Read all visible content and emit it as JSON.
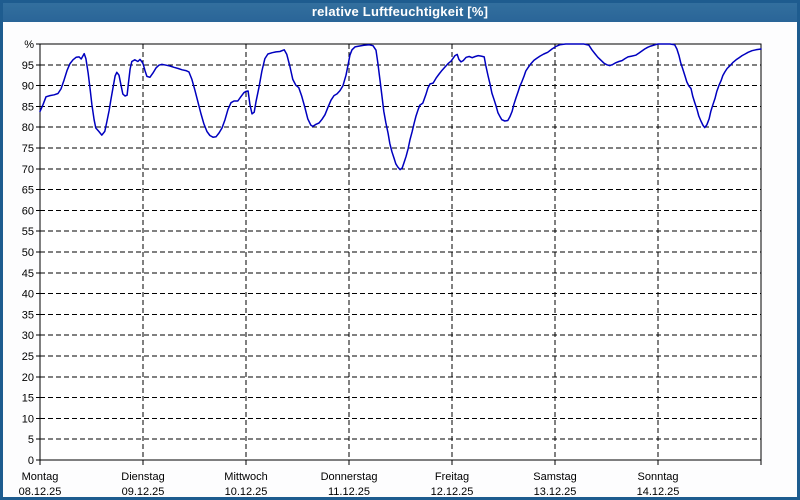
{
  "title_bar": {
    "text": "relative Luftfeuchtigkeit [%]"
  },
  "colors": {
    "title_bar_bg": "#2d6da3",
    "frame_border": "#1e5c8f",
    "plot_bg": "#ffffff",
    "grid": "#000000",
    "axis": "#000000",
    "line": "#0000bf",
    "label_text": "#000000",
    "title_text": "#ffffff"
  },
  "chart_data": {
    "type": "line",
    "title": "relative Luftfeuchtigkeit [%]",
    "ylabel": "%",
    "y_top_label": "%",
    "ylim": [
      0,
      100
    ],
    "ytick_step": 5,
    "grid": "dashed",
    "legend": "none",
    "x_range_hours": [
      0,
      168
    ],
    "x_days": [
      {
        "label": "Montag",
        "date": "08.12.25"
      },
      {
        "label": "Dienstag",
        "date": "09.12.25"
      },
      {
        "label": "Mittwoch",
        "date": "10.12.25"
      },
      {
        "label": "Donnerstag",
        "date": "11.12.25"
      },
      {
        "label": "Freitag",
        "date": "12.12.25"
      },
      {
        "label": "Samstag",
        "date": "13.12.25"
      },
      {
        "label": "Sonntag",
        "date": "14.12.25"
      }
    ],
    "series": [
      {
        "name": "relative Luftfeuchtigkeit",
        "unit": "%",
        "points": [
          [
            0,
            83.8
          ],
          [
            0.7,
            85.4
          ],
          [
            1.4,
            87.3
          ],
          [
            2.3,
            87.6
          ],
          [
            3.3,
            87.8
          ],
          [
            4.2,
            88.1
          ],
          [
            4.9,
            89.2
          ],
          [
            5.6,
            91.3
          ],
          [
            6.3,
            93.6
          ],
          [
            7,
            95.3
          ],
          [
            7.7,
            96.2
          ],
          [
            8.4,
            96.8
          ],
          [
            9.1,
            96.9
          ],
          [
            9.6,
            96.4
          ],
          [
            10.3,
            97.7
          ],
          [
            10.7,
            96.5
          ],
          [
            11.2,
            93.1
          ],
          [
            11.7,
            89
          ],
          [
            12.1,
            85.4
          ],
          [
            12.6,
            81.8
          ],
          [
            13,
            79.8
          ],
          [
            13.7,
            79
          ],
          [
            14.4,
            78.1
          ],
          [
            15.1,
            79
          ],
          [
            15.6,
            81.5
          ],
          [
            16.1,
            84
          ],
          [
            16.5,
            86.5
          ],
          [
            17,
            89.5
          ],
          [
            17.5,
            92.3
          ],
          [
            17.9,
            93.2
          ],
          [
            18.4,
            92.5
          ],
          [
            18.9,
            90
          ],
          [
            19.3,
            88
          ],
          [
            19.8,
            87.5
          ],
          [
            20.3,
            87.7
          ],
          [
            20.6,
            90.5
          ],
          [
            21,
            94
          ],
          [
            21.4,
            95.8
          ],
          [
            22.1,
            96.2
          ],
          [
            22.8,
            95.8
          ],
          [
            23.3,
            96.3
          ],
          [
            23.7,
            95.8
          ],
          [
            24,
            95.3
          ],
          [
            24.5,
            93.5
          ],
          [
            24.9,
            92.2
          ],
          [
            25.6,
            92
          ],
          [
            26.3,
            93
          ],
          [
            27,
            94.2
          ],
          [
            27.7,
            94.9
          ],
          [
            28.4,
            95.1
          ],
          [
            29.4,
            94.9
          ],
          [
            30.3,
            94.7
          ],
          [
            31.2,
            94.4
          ],
          [
            32.2,
            94.1
          ],
          [
            33.1,
            93.8
          ],
          [
            34,
            93.6
          ],
          [
            34.7,
            93.3
          ],
          [
            35.4,
            91.5
          ],
          [
            36.1,
            88.9
          ],
          [
            36.8,
            86.1
          ],
          [
            37.5,
            83.3
          ],
          [
            38.2,
            80.8
          ],
          [
            38.9,
            79
          ],
          [
            39.6,
            78
          ],
          [
            40.3,
            77.6
          ],
          [
            41,
            77.7
          ],
          [
            41.7,
            78.6
          ],
          [
            42.4,
            79.8
          ],
          [
            43.1,
            81.8
          ],
          [
            43.8,
            84.3
          ],
          [
            44.5,
            85.9
          ],
          [
            45.2,
            86.3
          ],
          [
            46.1,
            86.3
          ],
          [
            46.8,
            87.3
          ],
          [
            47.5,
            88.3
          ],
          [
            48,
            88.6
          ],
          [
            48.5,
            88.7
          ],
          [
            48.9,
            85.5
          ],
          [
            49.4,
            83.2
          ],
          [
            49.9,
            83.6
          ],
          [
            50.3,
            86
          ],
          [
            51,
            89.5
          ],
          [
            51.7,
            93.5
          ],
          [
            52.4,
            96.5
          ],
          [
            53.1,
            97.6
          ],
          [
            54.1,
            97.9
          ],
          [
            55,
            98.1
          ],
          [
            55.9,
            98.2
          ],
          [
            56.9,
            98.6
          ],
          [
            57.5,
            97.5
          ],
          [
            58.2,
            94.7
          ],
          [
            58.9,
            91.5
          ],
          [
            59.6,
            90.1
          ],
          [
            60.3,
            89.5
          ],
          [
            61,
            87.4
          ],
          [
            61.7,
            84.8
          ],
          [
            62.4,
            82
          ],
          [
            63.1,
            80.5
          ],
          [
            63.6,
            80.2
          ],
          [
            64.3,
            80.7
          ],
          [
            65,
            81
          ],
          [
            65.7,
            81.9
          ],
          [
            66.4,
            83
          ],
          [
            67.1,
            84.8
          ],
          [
            67.8,
            86.5
          ],
          [
            68.5,
            87.6
          ],
          [
            69.2,
            88
          ],
          [
            69.9,
            88.8
          ],
          [
            70.6,
            90
          ],
          [
            71.3,
            92.5
          ],
          [
            71.8,
            95
          ],
          [
            72.2,
            97.3
          ],
          [
            72.7,
            98.6
          ],
          [
            73.4,
            99.3
          ],
          [
            74.3,
            99.5
          ],
          [
            75.5,
            99.7
          ],
          [
            76.7,
            99.8
          ],
          [
            77.6,
            99.6
          ],
          [
            78.3,
            98.5
          ],
          [
            78.7,
            95.5
          ],
          [
            79.2,
            91.5
          ],
          [
            79.7,
            87.4
          ],
          [
            80.1,
            83.8
          ],
          [
            80.6,
            81
          ],
          [
            81.1,
            78.5
          ],
          [
            81.5,
            76.1
          ],
          [
            82,
            74.1
          ],
          [
            82.5,
            72.5
          ],
          [
            82.9,
            71.2
          ],
          [
            83.4,
            70.4
          ],
          [
            83.9,
            69.8
          ],
          [
            84.4,
            70.2
          ],
          [
            84.8,
            71.4
          ],
          [
            85.3,
            73
          ],
          [
            85.8,
            74.9
          ],
          [
            86.2,
            76.9
          ],
          [
            86.7,
            78.9
          ],
          [
            87.2,
            81
          ],
          [
            87.6,
            82.6
          ],
          [
            88.1,
            84.2
          ],
          [
            88.5,
            85.3
          ],
          [
            89.2,
            85.8
          ],
          [
            89.9,
            87.8
          ],
          [
            90.4,
            89.5
          ],
          [
            90.9,
            90.4
          ],
          [
            91.6,
            90.6
          ],
          [
            92.3,
            91.8
          ],
          [
            93,
            92.8
          ],
          [
            93.7,
            93.7
          ],
          [
            94.4,
            94.5
          ],
          [
            95.1,
            95.3
          ],
          [
            95.8,
            95.9
          ],
          [
            96.2,
            96.5
          ],
          [
            96.7,
            97.2
          ],
          [
            97.2,
            97.5
          ],
          [
            97.6,
            96.3
          ],
          [
            98.1,
            95.7
          ],
          [
            98.6,
            96
          ],
          [
            99.3,
            96.8
          ],
          [
            100,
            97
          ],
          [
            100.7,
            96.7
          ],
          [
            101.4,
            97
          ],
          [
            102.1,
            97.2
          ],
          [
            102.8,
            97.1
          ],
          [
            103.5,
            96.9
          ],
          [
            103.9,
            94.7
          ],
          [
            104.4,
            92.3
          ],
          [
            104.9,
            90.2
          ],
          [
            105.3,
            88.2
          ],
          [
            105.8,
            86.6
          ],
          [
            106.3,
            85
          ],
          [
            106.7,
            83.5
          ],
          [
            107.2,
            82.5
          ],
          [
            107.6,
            81.8
          ],
          [
            108.3,
            81.5
          ],
          [
            109,
            81.6
          ],
          [
            109.5,
            82.5
          ],
          [
            110,
            83.8
          ],
          [
            110.4,
            85.4
          ],
          [
            110.9,
            87
          ],
          [
            111.4,
            88.5
          ],
          [
            111.8,
            89.8
          ],
          [
            112.3,
            91
          ],
          [
            112.8,
            92.3
          ],
          [
            113.2,
            93.5
          ],
          [
            113.7,
            94.3
          ],
          [
            114.4,
            95.3
          ],
          [
            115.1,
            96.1
          ],
          [
            115.8,
            96.6
          ],
          [
            116.5,
            97.1
          ],
          [
            117.4,
            97.6
          ],
          [
            118.3,
            98
          ],
          [
            119.3,
            98.8
          ],
          [
            120.2,
            99.4
          ],
          [
            121.1,
            99.8
          ],
          [
            122.5,
            100
          ],
          [
            123.9,
            100
          ],
          [
            125.3,
            100
          ],
          [
            126.7,
            100
          ],
          [
            127.9,
            99.7
          ],
          [
            128.6,
            98.6
          ],
          [
            129.3,
            97.7
          ],
          [
            130,
            96.8
          ],
          [
            130.7,
            96.1
          ],
          [
            131.4,
            95.4
          ],
          [
            132.1,
            95
          ],
          [
            132.8,
            94.8
          ],
          [
            133.5,
            95.1
          ],
          [
            134.2,
            95.5
          ],
          [
            134.9,
            95.8
          ],
          [
            135.6,
            96
          ],
          [
            136.3,
            96.5
          ],
          [
            137,
            96.9
          ],
          [
            137.9,
            97.1
          ],
          [
            138.8,
            97.3
          ],
          [
            139.5,
            97.8
          ],
          [
            140.2,
            98.3
          ],
          [
            140.9,
            98.8
          ],
          [
            141.6,
            99.2
          ],
          [
            142.3,
            99.5
          ],
          [
            143.3,
            99.8
          ],
          [
            144,
            100
          ],
          [
            145.4,
            100
          ],
          [
            146.8,
            100
          ],
          [
            147.9,
            99.8
          ],
          [
            148.4,
            98.8
          ],
          [
            148.9,
            97.2
          ],
          [
            149.3,
            95.5
          ],
          [
            149.8,
            93.9
          ],
          [
            150.3,
            92.3
          ],
          [
            150.7,
            90.9
          ],
          [
            151.2,
            89.9
          ],
          [
            151.7,
            89.3
          ],
          [
            152.1,
            87.4
          ],
          [
            152.6,
            85.8
          ],
          [
            153.1,
            84.2
          ],
          [
            153.5,
            82.7
          ],
          [
            154,
            81.5
          ],
          [
            154.5,
            80.4
          ],
          [
            154.9,
            79.9
          ],
          [
            155.4,
            80.6
          ],
          [
            155.9,
            82
          ],
          [
            156.3,
            83.8
          ],
          [
            156.8,
            85.4
          ],
          [
            157.3,
            87
          ],
          [
            157.7,
            88.6
          ],
          [
            158.2,
            90
          ],
          [
            158.7,
            91.2
          ],
          [
            159.1,
            92.4
          ],
          [
            159.6,
            93.3
          ],
          [
            160.1,
            94.1
          ],
          [
            160.8,
            94.8
          ],
          [
            161.5,
            95.6
          ],
          [
            162.2,
            96.2
          ],
          [
            162.9,
            96.7
          ],
          [
            163.6,
            97.2
          ],
          [
            164.3,
            97.6
          ],
          [
            165,
            98
          ],
          [
            165.9,
            98.4
          ],
          [
            166.8,
            98.6
          ],
          [
            168,
            98.8
          ]
        ]
      }
    ]
  }
}
